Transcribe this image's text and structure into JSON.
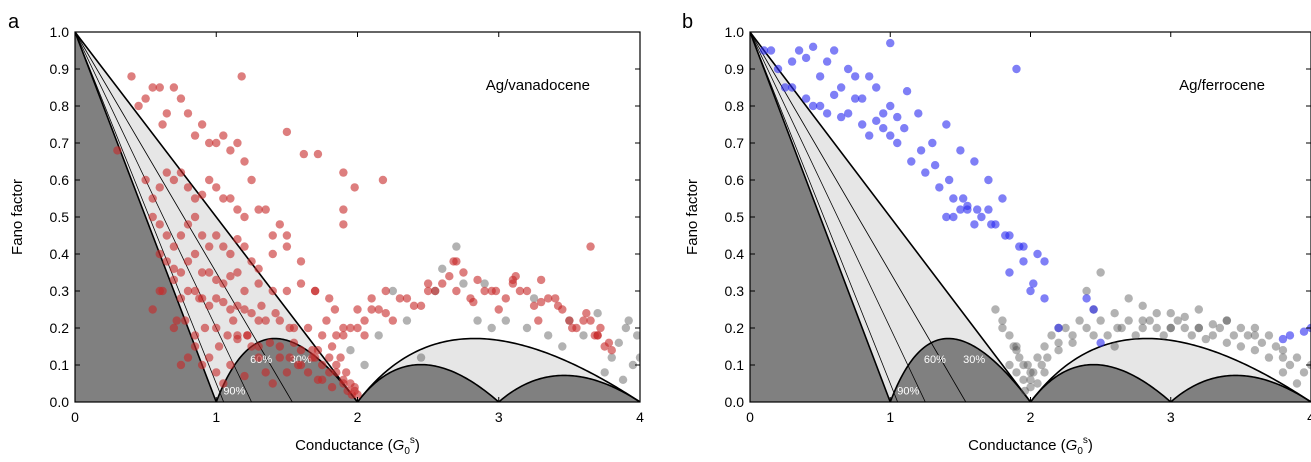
{
  "panels": [
    {
      "letter": "a",
      "label": "Ag/vanadocene",
      "xlabel_main": "Conductance (",
      "xlabel_sym": "G",
      "xlabel_sub": "0",
      "xlabel_sup": "s",
      "xlabel_close": ")",
      "ylabel": "Fano factor",
      "pct_labels": [
        "60%",
        "30%",
        "90%"
      ],
      "xticks": [
        "0",
        "1",
        "2",
        "3",
        "4"
      ],
      "yticks": [
        "0.0",
        "0.1",
        "0.2",
        "0.3",
        "0.4",
        "0.5",
        "0.6",
        "0.7",
        "0.8",
        "0.9",
        "1.0"
      ],
      "colors": {
        "primary": "#c62828",
        "secondary": "#555555",
        "dark_region": "#808080",
        "light_region": "#e6e6e6"
      }
    },
    {
      "letter": "b",
      "label": "Ag/ferrocene",
      "xlabel_main": "Conductance (",
      "xlabel_sym": "G",
      "xlabel_sub": "0",
      "xlabel_sup": "s",
      "xlabel_close": ")",
      "ylabel": "Fano factor",
      "pct_labels": [
        "60%",
        "30%",
        "90%"
      ],
      "xticks": [
        "0",
        "1",
        "2",
        "3",
        "4"
      ],
      "yticks": [
        "0.0",
        "0.1",
        "0.2",
        "0.3",
        "0.4",
        "0.5",
        "0.6",
        "0.7",
        "0.8",
        "0.9",
        "1.0"
      ],
      "colors": {
        "primary": "#2a2af0",
        "secondary": "#555555",
        "dark_region": "#808080",
        "light_region": "#e6e6e6"
      }
    }
  ],
  "chart_data": [
    {
      "type": "scatter",
      "title": "Ag/vanadocene",
      "xlabel": "Conductance (G0s)",
      "ylabel": "Fano factor",
      "xlim": [
        0,
        4
      ],
      "ylim": [
        0,
        1
      ],
      "grid": false,
      "theory_regions": [
        "spin-degenerate minimum (dark)",
        "spin-polarized bounds (light)",
        "polarization lines 30%, 60%, 90%"
      ],
      "series": [
        {
          "color": "#c62828",
          "x": [
            0.3,
            0.4,
            0.45,
            0.5,
            0.55,
            0.6,
            0.62,
            0.65,
            0.7,
            0.75,
            0.8,
            0.85,
            0.9,
            0.95,
            1.0,
            1.05,
            1.1,
            1.15,
            1.2,
            1.25,
            0.5,
            0.55,
            0.6,
            0.65,
            0.7,
            0.75,
            0.8,
            0.85,
            0.9,
            0.95,
            1.0,
            1.05,
            1.1,
            1.15,
            1.2,
            1.3,
            1.35,
            1.4,
            1.45,
            1.5,
            0.55,
            0.6,
            0.65,
            0.7,
            0.75,
            0.8,
            0.85,
            0.9,
            0.95,
            1.0,
            1.05,
            1.1,
            1.15,
            1.2,
            1.25,
            1.3,
            1.4,
            1.5,
            1.6,
            1.7,
            0.6,
            0.65,
            0.7,
            0.75,
            0.8,
            0.85,
            0.9,
            0.95,
            1.0,
            1.05,
            1.1,
            1.15,
            1.2,
            1.3,
            1.4,
            1.5,
            1.6,
            1.7,
            1.8,
            1.9,
            0.62,
            0.7,
            0.75,
            0.8,
            0.85,
            0.9,
            0.95,
            1.0,
            1.05,
            1.1,
            1.15,
            1.2,
            1.25,
            1.3,
            1.35,
            1.45,
            1.55,
            1.65,
            1.75,
            1.85,
            0.7,
            0.78,
            0.85,
            0.92,
            1.0,
            1.08,
            1.15,
            1.22,
            1.3,
            1.38,
            1.45,
            1.52,
            1.6,
            1.68,
            1.75,
            1.8,
            1.85,
            1.9,
            1.95,
            1.98,
            0.8,
            0.9,
            1.0,
            1.1,
            1.2,
            1.3,
            1.4,
            1.5,
            1.6,
            1.7,
            1.75,
            1.8,
            1.85,
            1.9,
            1.93,
            1.96,
            1.98,
            2.0,
            1.82,
            1.88,
            0.75,
            0.85,
            0.95,
            1.05,
            1.15,
            1.25,
            1.35,
            1.45,
            1.55,
            1.65,
            1.72,
            1.78,
            1.84,
            1.9,
            1.95,
            0.55,
            0.6,
            0.72,
            0.88,
            1.02,
            1.12,
            1.22,
            1.32,
            1.42,
            1.52,
            1.58,
            1.68,
            1.72,
            1.82,
            1.92,
            2.0,
            2.05,
            2.1,
            2.15,
            1.9,
            2.0,
            2.1,
            2.2,
            2.3,
            2.4,
            2.5,
            2.6,
            2.7,
            2.8,
            2.9,
            3.0,
            3.1,
            3.2,
            3.3,
            3.4,
            3.5,
            3.6,
            3.7,
            3.75,
            3.8,
            2.2,
            2.35,
            2.5,
            2.65,
            2.75,
            2.85,
            2.95,
            3.05,
            3.15,
            3.25,
            3.35,
            3.45,
            3.55,
            3.65,
            3.7,
            3.78,
            2.05,
            2.25,
            2.45,
            2.55,
            2.68,
            2.82,
            2.98,
            3.12,
            3.28,
            3.42,
            3.52,
            3.62,
            3.68,
            3.72,
            1.18,
            1.5,
            1.62,
            1.72,
            1.9,
            2.18,
            1.98,
            2.7,
            3.1,
            3.3,
            3.65,
            1.9
          ],
          "y": [
            0.68,
            0.88,
            0.8,
            0.82,
            0.85,
            0.85,
            0.75,
            0.78,
            0.85,
            0.82,
            0.78,
            0.72,
            0.75,
            0.7,
            0.7,
            0.72,
            0.68,
            0.7,
            0.65,
            0.6,
            0.6,
            0.55,
            0.58,
            0.62,
            0.6,
            0.62,
            0.58,
            0.55,
            0.56,
            0.6,
            0.58,
            0.55,
            0.55,
            0.52,
            0.5,
            0.52,
            0.52,
            0.45,
            0.48,
            0.45,
            0.5,
            0.48,
            0.45,
            0.42,
            0.45,
            0.48,
            0.5,
            0.45,
            0.42,
            0.45,
            0.42,
            0.4,
            0.44,
            0.42,
            0.38,
            0.36,
            0.4,
            0.42,
            0.38,
            0.3,
            0.4,
            0.38,
            0.36,
            0.35,
            0.38,
            0.4,
            0.35,
            0.35,
            0.33,
            0.32,
            0.34,
            0.35,
            0.3,
            0.32,
            0.3,
            0.3,
            0.32,
            0.3,
            0.28,
            0.2,
            0.3,
            0.33,
            0.28,
            0.3,
            0.3,
            0.28,
            0.26,
            0.28,
            0.27,
            0.25,
            0.26,
            0.25,
            0.24,
            0.22,
            0.22,
            0.22,
            0.2,
            0.2,
            0.18,
            0.18,
            0.2,
            0.22,
            0.18,
            0.2,
            0.2,
            0.18,
            0.17,
            0.18,
            0.15,
            0.16,
            0.15,
            0.12,
            0.14,
            0.12,
            0.1,
            0.12,
            0.08,
            0.06,
            0.05,
            0.03,
            0.12,
            0.1,
            0.08,
            0.1,
            0.07,
            0.12,
            0.05,
            0.08,
            0.1,
            0.12,
            0.06,
            0.08,
            0.1,
            0.05,
            0.03,
            0.02,
            0.04,
            0.02,
            0.15,
            0.12,
            0.1,
            0.15,
            0.12,
            0.05,
            0.18,
            0.15,
            0.08,
            0.12,
            0.16,
            0.08,
            0.14,
            0.22,
            0.25,
            0.18,
            0.2,
            0.25,
            0.3,
            0.22,
            0.28,
            0.15,
            0.22,
            0.18,
            0.26,
            0.24,
            0.2,
            0.1,
            0.14,
            0.06,
            0.04,
            0.08,
            0.25,
            0.22,
            0.28,
            0.25,
            0.48,
            0.2,
            0.25,
            0.3,
            0.28,
            0.26,
            0.3,
            0.32,
            0.3,
            0.28,
            0.3,
            0.25,
            0.32,
            0.3,
            0.27,
            0.28,
            0.22,
            0.22,
            0.18,
            0.15,
            0.14,
            0.24,
            0.28,
            0.32,
            0.34,
            0.35,
            0.33,
            0.3,
            0.28,
            0.3,
            0.26,
            0.28,
            0.25,
            0.2,
            0.22,
            0.18,
            0.16,
            0.18,
            0.22,
            0.26,
            0.3,
            0.38,
            0.27,
            0.3,
            0.34,
            0.22,
            0.26,
            0.2,
            0.24,
            0.18,
            0.2,
            0.88,
            0.73,
            0.67,
            0.67,
            0.62,
            0.6,
            0.58,
            0.38,
            0.33,
            0.33,
            0.42,
            0.52
          ]
        },
        {
          "color": "#555555",
          "x": [
            1.95,
            2.05,
            2.15,
            2.25,
            2.35,
            2.45,
            2.55,
            2.7,
            2.75,
            2.85,
            2.95,
            3.05,
            3.2,
            3.35,
            3.5,
            3.6,
            3.7,
            3.8,
            3.85,
            3.9,
            3.95,
            4.0,
            3.88,
            3.92,
            3.98,
            3.75,
            2.6,
            2.9,
            3.25,
            3.45
          ],
          "y": [
            0.14,
            0.1,
            0.18,
            0.3,
            0.22,
            0.12,
            0.3,
            0.42,
            0.32,
            0.22,
            0.2,
            0.22,
            0.2,
            0.18,
            0.22,
            0.18,
            0.24,
            0.12,
            0.16,
            0.2,
            0.1,
            0.12,
            0.06,
            0.22,
            0.18,
            0.08,
            0.36,
            0.32,
            0.28,
            0.15
          ]
        }
      ]
    },
    {
      "type": "scatter",
      "title": "Ag/ferrocene",
      "xlabel": "Conductance (G0s)",
      "ylabel": "Fano factor",
      "xlim": [
        0,
        4
      ],
      "ylim": [
        0,
        1
      ],
      "grid": false,
      "theory_regions": [
        "spin-degenerate minimum (dark)",
        "spin-polarized bounds (light)",
        "polarization lines 30%, 60%, 90%"
      ],
      "series": [
        {
          "color": "#2a2af0",
          "x": [
            0.1,
            0.15,
            0.2,
            0.25,
            0.3,
            0.35,
            0.4,
            0.45,
            0.5,
            0.55,
            0.6,
            0.65,
            0.7,
            0.75,
            0.8,
            0.85,
            0.9,
            0.95,
            1.0,
            1.05,
            0.3,
            0.4,
            0.5,
            0.6,
            0.7,
            0.8,
            0.9,
            1.0,
            1.1,
            1.2,
            1.3,
            1.4,
            1.5,
            1.6,
            1.7,
            1.8,
            1.9,
            0.45,
            0.55,
            0.65,
            0.75,
            0.85,
            0.95,
            1.05,
            1.15,
            1.25,
            1.35,
            1.45,
            1.55,
            1.65,
            1.75,
            1.85,
            1.95,
            2.05,
            1.4,
            1.45,
            1.5,
            1.55,
            1.6,
            1.7,
            1.85,
            1.95,
            2.0,
            2.1,
            2.2,
            2.4,
            2.45,
            2.5,
            3.8,
            3.85,
            3.95,
            4.0,
            1.0,
            1.12,
            1.22,
            1.32,
            1.42,
            1.52,
            1.62,
            1.72,
            1.82,
            1.92,
            2.02,
            2.1
          ],
          "y": [
            0.95,
            0.95,
            0.9,
            0.85,
            0.92,
            0.95,
            0.93,
            0.96,
            0.88,
            0.92,
            0.95,
            0.85,
            0.9,
            0.88,
            0.82,
            0.88,
            0.85,
            0.78,
            0.8,
            0.77,
            0.85,
            0.82,
            0.8,
            0.83,
            0.78,
            0.75,
            0.76,
            0.72,
            0.74,
            0.78,
            0.7,
            0.75,
            0.68,
            0.65,
            0.6,
            0.55,
            0.9,
            0.8,
            0.78,
            0.77,
            0.82,
            0.72,
            0.74,
            0.7,
            0.65,
            0.62,
            0.58,
            0.55,
            0.52,
            0.5,
            0.48,
            0.45,
            0.42,
            0.4,
            0.5,
            0.5,
            0.52,
            0.53,
            0.48,
            0.52,
            0.35,
            0.38,
            0.3,
            0.28,
            0.2,
            0.28,
            0.25,
            0.16,
            0.17,
            0.18,
            0.19,
            0.2,
            0.97,
            0.84,
            0.68,
            0.64,
            0.6,
            0.55,
            0.52,
            0.48,
            0.45,
            0.42,
            0.32,
            0.38
          ]
        },
        {
          "color": "#555555",
          "x": [
            1.75,
            1.8,
            1.85,
            1.9,
            1.95,
            2.0,
            2.05,
            2.1,
            2.15,
            2.2,
            2.25,
            2.3,
            2.35,
            2.4,
            2.45,
            2.5,
            2.55,
            2.6,
            2.65,
            2.7,
            2.75,
            2.8,
            2.85,
            2.9,
            2.95,
            3.0,
            3.05,
            3.1,
            3.15,
            3.2,
            3.25,
            3.3,
            3.35,
            3.4,
            3.45,
            3.5,
            3.55,
            3.6,
            3.65,
            3.7,
            3.75,
            3.8,
            3.85,
            3.9,
            3.95,
            4.0,
            1.85,
            1.9,
            1.95,
            2.0,
            2.05,
            1.92,
            1.98,
            2.02,
            1.88,
            1.96,
            2.08,
            2.12,
            2.2,
            2.3,
            2.45,
            2.62,
            2.8,
            3.0,
            3.2,
            3.4,
            3.6,
            3.8,
            1.8,
            1.9,
            2.0,
            2.1,
            2.2,
            2.4,
            2.6,
            2.8,
            3.0,
            3.2,
            3.4,
            3.6,
            3.8,
            3.9,
            2.5,
            2.7,
            2.9,
            3.1,
            3.3,
            3.5,
            3.7
          ],
          "y": [
            0.25,
            0.22,
            0.18,
            0.15,
            0.1,
            0.08,
            0.12,
            0.15,
            0.18,
            0.16,
            0.2,
            0.18,
            0.22,
            0.2,
            0.25,
            0.22,
            0.18,
            0.15,
            0.2,
            0.22,
            0.18,
            0.2,
            0.22,
            0.2,
            0.18,
            0.2,
            0.22,
            0.2,
            0.18,
            0.2,
            0.17,
            0.18,
            0.2,
            0.16,
            0.18,
            0.15,
            0.18,
            0.14,
            0.16,
            0.12,
            0.15,
            0.12,
            0.1,
            0.12,
            0.08,
            0.1,
            0.1,
            0.08,
            0.06,
            0.04,
            0.05,
            0.12,
            0.1,
            0.08,
            0.15,
            0.03,
            0.1,
            0.12,
            0.14,
            0.16,
            0.18,
            0.2,
            0.22,
            0.24,
            0.2,
            0.22,
            0.18,
            0.14,
            0.2,
            0.14,
            0.06,
            0.08,
            0.2,
            0.3,
            0.24,
            0.26,
            0.2,
            0.25,
            0.22,
            0.2,
            0.08,
            0.05,
            0.35,
            0.28,
            0.24,
            0.23,
            0.21,
            0.2,
            0.18
          ]
        }
      ]
    }
  ]
}
